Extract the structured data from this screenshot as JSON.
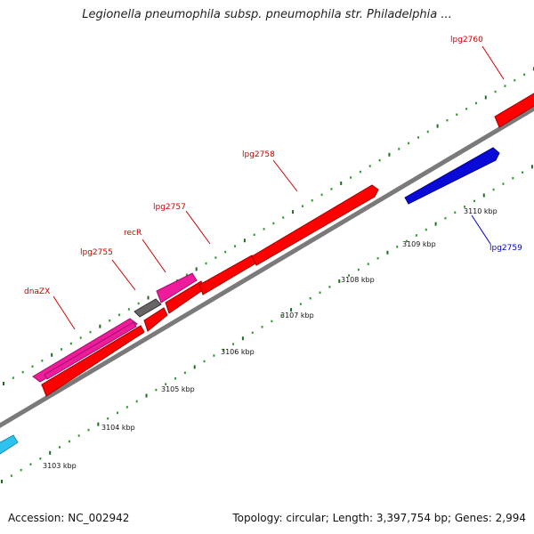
{
  "title": "Legionella pneumophila subsp. pneumophila str. Philadelphia ...",
  "footer": {
    "accession": "Accession: NC_002942",
    "stats": "Topology: circular; Length: 3,397,754 bp; Genes: 2,994"
  },
  "colors": {
    "backbone": "#7a7a7a",
    "tick_major": "#1a6e1a",
    "tick_minor": "#2e9a2e",
    "gene_red": "#ff0000",
    "gene_magenta": "#ee1b9b",
    "gene_blue": "#0a0ad8",
    "gene_gray": "#666666",
    "gene_cyan": "#2ec2ee",
    "label_red": "#cc0000",
    "label_blue": "#0000cc"
  },
  "tick_labels": [
    "3103 kbp",
    "3104 kbp",
    "3105 kbp",
    "3106 kbp",
    "3107 kbp",
    "3108 kbp",
    "3109 kbp",
    "3110 kbp"
  ],
  "gene_labels": [
    {
      "name": "dnaZX",
      "color": "label_red"
    },
    {
      "name": "lpg2755",
      "color": "label_red"
    },
    {
      "name": "recR",
      "color": "label_red"
    },
    {
      "name": "lpg2757",
      "color": "label_red"
    },
    {
      "name": "lpg2758",
      "color": "label_red"
    },
    {
      "name": "lpg2760",
      "color": "label_red"
    },
    {
      "name": "lpg2759",
      "color": "label_blue"
    }
  ]
}
